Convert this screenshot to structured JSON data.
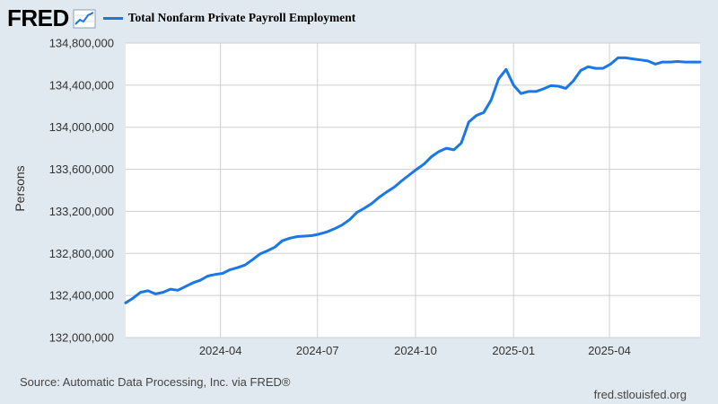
{
  "header": {
    "logo_text": "FRED",
    "logo_icon": "line-graph-icon",
    "legend_label": "Total Nonfarm Private Payroll Employment",
    "legend_color": "#1a77e6"
  },
  "footer": {
    "source": "Source: Automatic Data Processing, Inc. via FRED®",
    "website": "fred.stlouisfed.org"
  },
  "chart_data": {
    "type": "line",
    "title": "Total Nonfarm Private Payroll Employment",
    "xlabel": "",
    "ylabel": "Persons",
    "ylim": [
      132000000,
      134800000
    ],
    "yticks": [
      132000000,
      132400000,
      132800000,
      133200000,
      133600000,
      134000000,
      134400000,
      134800000
    ],
    "ytick_labels": [
      "132,000,000",
      "132,400,000",
      "132,800,000",
      "133,200,000",
      "133,600,000",
      "134,000,000",
      "134,400,000",
      "134,800,000"
    ],
    "xlim": [
      "2024-01-03",
      "2025-06-25"
    ],
    "xticks": [
      "2024-04-01",
      "2024-07-01",
      "2024-10-01",
      "2025-01-01",
      "2025-04-01"
    ],
    "xtick_labels": [
      "2024-04",
      "2024-07",
      "2024-10",
      "2025-01",
      "2025-04"
    ],
    "grid": true,
    "legend_position": "top-left",
    "series": [
      {
        "name": "Total Nonfarm Private Payroll Employment",
        "color": "#1a77e6",
        "x": [
          "2024-01-03",
          "2024-01-10",
          "2024-01-17",
          "2024-01-24",
          "2024-01-31",
          "2024-02-07",
          "2024-02-14",
          "2024-02-21",
          "2024-02-28",
          "2024-03-06",
          "2024-03-13",
          "2024-03-20",
          "2024-03-27",
          "2024-04-03",
          "2024-04-10",
          "2024-04-17",
          "2024-04-24",
          "2024-05-01",
          "2024-05-08",
          "2024-05-15",
          "2024-05-22",
          "2024-05-29",
          "2024-06-05",
          "2024-06-12",
          "2024-06-19",
          "2024-06-26",
          "2024-07-03",
          "2024-07-10",
          "2024-07-17",
          "2024-07-24",
          "2024-07-31",
          "2024-08-07",
          "2024-08-14",
          "2024-08-21",
          "2024-08-28",
          "2024-09-04",
          "2024-09-11",
          "2024-09-18",
          "2024-09-25",
          "2024-10-02",
          "2024-10-09",
          "2024-10-16",
          "2024-10-23",
          "2024-10-30",
          "2024-11-06",
          "2024-11-13",
          "2024-11-20",
          "2024-11-27",
          "2024-12-04",
          "2024-12-11",
          "2024-12-18",
          "2024-12-25",
          "2025-01-01",
          "2025-01-08",
          "2025-01-15",
          "2025-01-22",
          "2025-01-29",
          "2025-02-05",
          "2025-02-12",
          "2025-02-19",
          "2025-02-26",
          "2025-03-05",
          "2025-03-12",
          "2025-03-19",
          "2025-03-26",
          "2025-04-02",
          "2025-04-09",
          "2025-04-16",
          "2025-04-23",
          "2025-04-30",
          "2025-05-07",
          "2025-05-14",
          "2025-05-21",
          "2025-05-28",
          "2025-06-04",
          "2025-06-11",
          "2025-06-18",
          "2025-06-25"
        ],
        "values": [
          132330000,
          132375000,
          132430000,
          132445000,
          132415000,
          132430000,
          132460000,
          132450000,
          132485000,
          132520000,
          132545000,
          132585000,
          132600000,
          132610000,
          132645000,
          132665000,
          132690000,
          132740000,
          132795000,
          132825000,
          132860000,
          132920000,
          132945000,
          132960000,
          132965000,
          132970000,
          132985000,
          133005000,
          133035000,
          133070000,
          133120000,
          133190000,
          133230000,
          133275000,
          133335000,
          133385000,
          133430000,
          133490000,
          133545000,
          133600000,
          133650000,
          133720000,
          133770000,
          133800000,
          133785000,
          133850000,
          134050000,
          134110000,
          134140000,
          134260000,
          134460000,
          134550000,
          134400000,
          134320000,
          134340000,
          134340000,
          134365000,
          134395000,
          134390000,
          134370000,
          134440000,
          134540000,
          134575000,
          134560000,
          134560000,
          134600000,
          134660000,
          134660000,
          134650000,
          134640000,
          134630000,
          134600000,
          134620000,
          134620000,
          134625000,
          134620000,
          134620000,
          134620000
        ]
      }
    ]
  }
}
